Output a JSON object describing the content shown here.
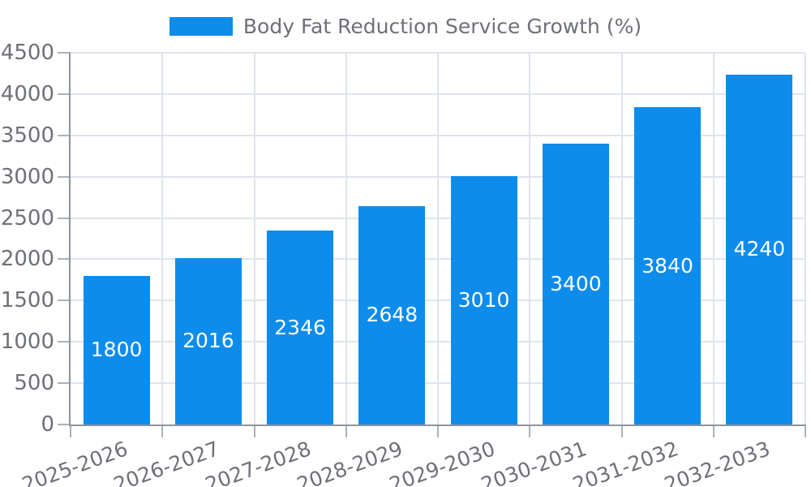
{
  "legend": {
    "label": "Body Fat Reduction Service Growth (%)"
  },
  "colors": {
    "bar": "#0D8CEC",
    "axis_line": "#8E939B",
    "tick": "#AEB1B8",
    "grid": "#E0E4EC",
    "axis_label": "#6E7079",
    "value_label": "#FFFFFF",
    "background": "#FFFFFF"
  },
  "chart_data": {
    "type": "bar",
    "title": "Body Fat Reduction Service Growth (%)",
    "series_name": "Body Fat Reduction Service Growth (%)",
    "categories": [
      "2025-2026",
      "2026-2027",
      "2027-2028",
      "2028-2029",
      "2029-2030",
      "2030-2031",
      "2031-2032",
      "2032-2033"
    ],
    "values": [
      1800,
      2016,
      2346,
      2648,
      3010,
      3400,
      3840,
      4240
    ],
    "xlabel": "",
    "ylabel": "",
    "ylim": [
      0,
      4500
    ],
    "yticks": [
      0,
      500,
      1000,
      1500,
      2000,
      2500,
      3000,
      3500,
      4000,
      4500
    ],
    "grid": true,
    "legend_position": "top-center",
    "value_label_position": "inside-center",
    "xtick_label_rotation_deg": 20
  }
}
